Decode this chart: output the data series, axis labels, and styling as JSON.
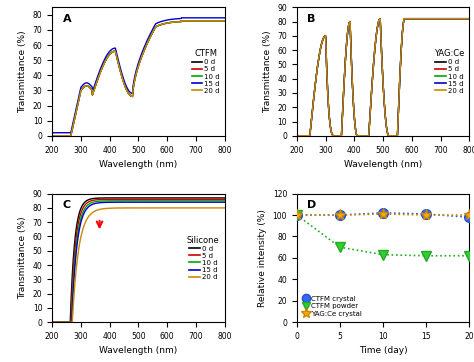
{
  "colors": {
    "0d": "#000000",
    "5d": "#cc0000",
    "10d": "#00aa00",
    "15d": "#0000cc",
    "20d": "#cc8800"
  },
  "legend_days": [
    "0 d",
    "5 d",
    "10 d",
    "15 d",
    "20 d"
  ],
  "xlabel": "Wavelength (nm)",
  "ylabel": "Transmittance (%)",
  "panelA_label": "CTFM",
  "panelB_label": "YAG:Ce",
  "panelC_label": "Silicone",
  "panelD_xlabel": "Time (day)",
  "panelD_ylabel": "Relative intensity (%)",
  "panelA_yticks": [
    0,
    10,
    20,
    30,
    40,
    50,
    60,
    70,
    80
  ],
  "panelA_ylim": [
    0,
    85
  ],
  "panelBC_yticks": [
    0,
    10,
    20,
    30,
    40,
    50,
    60,
    70,
    80,
    90
  ],
  "panelBC_ylim": [
    0,
    90
  ],
  "xticks": [
    200,
    300,
    400,
    500,
    600,
    700,
    800
  ],
  "panelD_ylim": [
    0,
    120
  ],
  "panelD_xlim": [
    0,
    20
  ],
  "panelD_xticks": [
    0,
    5,
    10,
    15,
    20
  ],
  "panelD_yticks": [
    0,
    20,
    40,
    60,
    80,
    100,
    120
  ],
  "ctfm_crystal_vals": [
    100,
    100,
    102,
    101,
    98
  ],
  "ctfm_powder_vals": [
    100,
    70,
    63,
    62,
    62
  ],
  "yag_crystal_vals": [
    100,
    100,
    101,
    100,
    100
  ],
  "panelD_days": [
    0,
    5,
    10,
    15,
    20
  ]
}
